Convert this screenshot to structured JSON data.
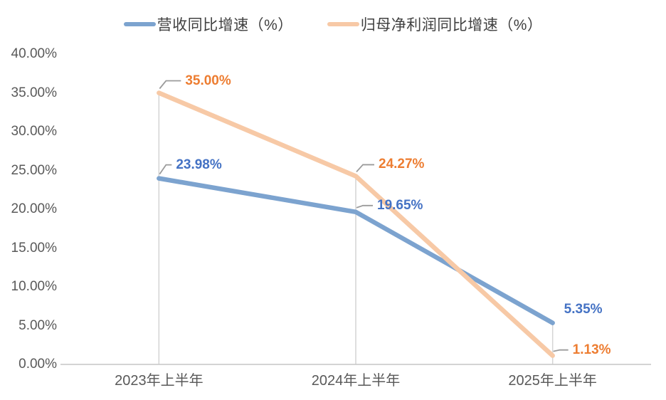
{
  "chart_data": {
    "type": "line",
    "title": "",
    "categories": [
      "2023年上半年",
      "2024年上半年",
      "2025年上半年"
    ],
    "series": [
      {
        "name": "营收同比增速（%）",
        "values": [
          23.98,
          19.65,
          5.35
        ],
        "data_labels": [
          "23.98%",
          "19.65%",
          "5.35%"
        ],
        "line_color": "#7CA3CF",
        "label_color": "#4472C4"
      },
      {
        "name": "归母净利润同比增速（%）",
        "values": [
          35.0,
          24.27,
          1.13
        ],
        "data_labels": [
          "35.00%",
          "24.27%",
          "1.13%"
        ],
        "line_color": "#F7C9A6",
        "label_color": "#ED7D31"
      }
    ],
    "ylim": [
      0,
      40
    ],
    "ytick_step": 5,
    "ytick_labels": [
      "0.00%",
      "5.00%",
      "10.00%",
      "15.00%",
      "20.00%",
      "25.00%",
      "30.00%",
      "35.00%",
      "40.00%"
    ],
    "grid": false,
    "droplines": true,
    "legend_position": "top",
    "colors": {
      "axis_line": "#C6C6C6",
      "dropline": "#D4D4D4",
      "leader_line": "#9B9B9B",
      "tick_text": "#595959",
      "legend_text": "#404040"
    }
  }
}
